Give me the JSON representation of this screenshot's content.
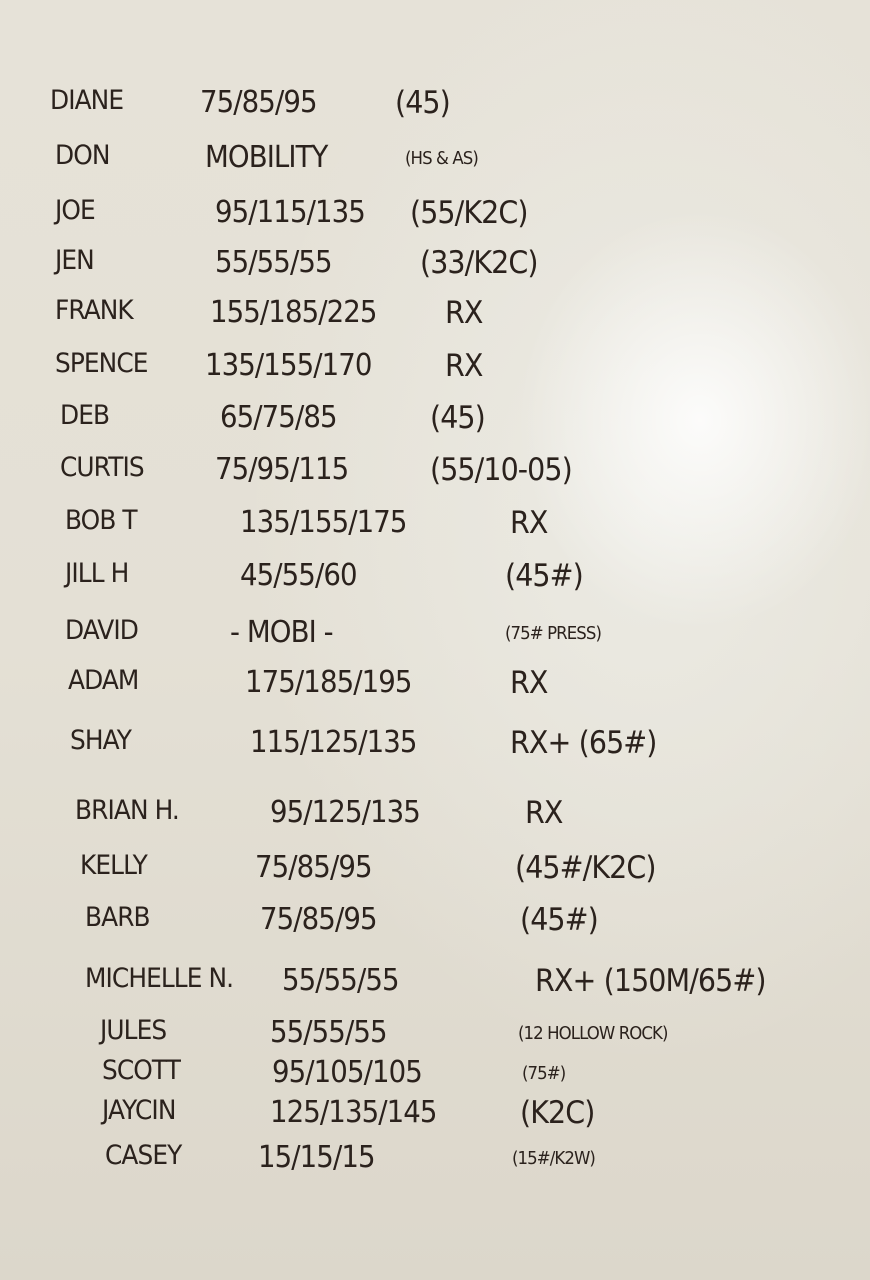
{
  "whiteboard": {
    "rows": [
      {
        "name": "Diane",
        "weights": "75/85/95",
        "note": "(45)"
      },
      {
        "name": "Don",
        "weights": "Mobility",
        "note": "(HS & AS)"
      },
      {
        "name": "Joe",
        "weights": "95/115/135",
        "note": "(55/K2C)"
      },
      {
        "name": "Jen",
        "weights": "55/55/55",
        "note": "(33/K2C)"
      },
      {
        "name": "Frank",
        "weights": "155/185/225",
        "note": "RX"
      },
      {
        "name": "Spence",
        "weights": "135/155/170",
        "note": "RX"
      },
      {
        "name": "Deb",
        "weights": "65/75/85",
        "note": "(45)"
      },
      {
        "name": "Curtis",
        "weights": "75/95/115",
        "note": "(55/10-05)"
      },
      {
        "name": "Bob T",
        "weights": "135/155/175",
        "note": "RX"
      },
      {
        "name": "Jill H",
        "weights": "45/55/60",
        "note": "(45#)"
      },
      {
        "name": "David",
        "weights": "- Mobi -",
        "note": "(75# Press)"
      },
      {
        "name": "Adam",
        "weights": "175/185/195",
        "note": "RX"
      },
      {
        "name": "Shay",
        "weights": "115/125/135",
        "note": "RX+ (65#)"
      },
      {
        "name": "Brian H.",
        "weights": "95/125/135",
        "note": "RX"
      },
      {
        "name": "Kelly",
        "weights": "75/85/95",
        "note": "(45#/K2C)"
      },
      {
        "name": "Barb",
        "weights": "75/85/95",
        "note": "(45#)"
      },
      {
        "name": "Michelle N.",
        "weights": "55/55/55",
        "note": "RX+ (150m/65#)"
      },
      {
        "name": "Jules",
        "weights": "55/55/55",
        "note": "(12 Hollow Rock)"
      },
      {
        "name": "Scott",
        "weights": "95/105/105",
        "note": "(75#)"
      },
      {
        "name": "Jaycin",
        "weights": "125/135/145",
        "note": "(K2C)"
      },
      {
        "name": "Casey",
        "weights": "15/15/15",
        "note": "(15#/K2W)"
      }
    ]
  },
  "colors": {
    "ink": "#2b221d",
    "board": "#e4e0d5"
  }
}
